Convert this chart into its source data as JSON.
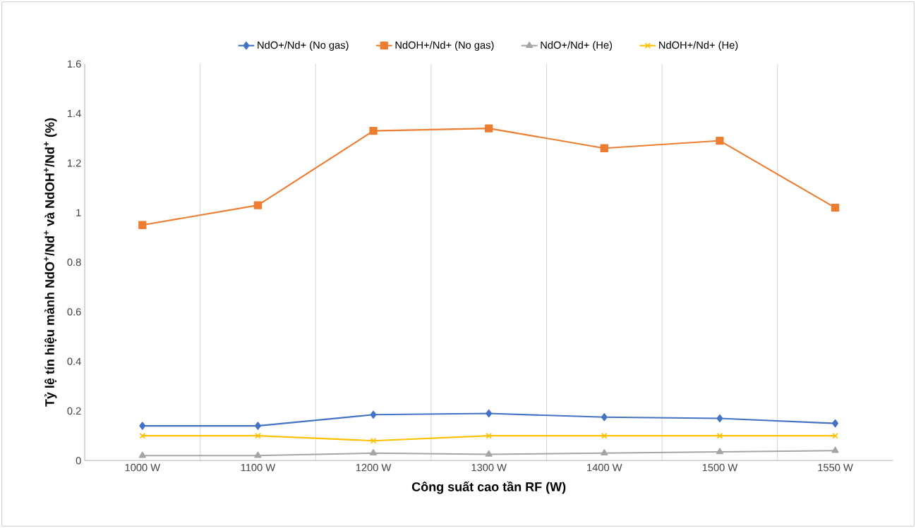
{
  "chart_data": {
    "type": "line",
    "xlabel": "Công suất cao tần RF (W)",
    "ylabel": "Tỷ lệ tín hiệu mảnh NdO$^{+}$/Nd$^{+}$ và NdOH$^{+}$/Nd$^{+}$ (%)",
    "categories": [
      "1000 W",
      "1100 W",
      "1200 W",
      "1300 W",
      "1400 W",
      "1500 W",
      "1550 W"
    ],
    "series": [
      {
        "name": "NdO+/Nd+ (No gas)",
        "color": "#4472c4",
        "marker": "diamond",
        "values": [
          0.14,
          0.14,
          0.185,
          0.19,
          0.175,
          0.17,
          0.15
        ]
      },
      {
        "name": "NdOH+/Nd+ (No gas)",
        "color": "#ed7d31",
        "marker": "square",
        "values": [
          0.95,
          1.03,
          1.33,
          1.34,
          1.26,
          1.29,
          1.02
        ]
      },
      {
        "name": "NdO+/Nd+ (He)",
        "color": "#a5a5a5",
        "marker": "triangle",
        "values": [
          0.02,
          0.02,
          0.03,
          0.025,
          0.03,
          0.035,
          0.04
        ]
      },
      {
        "name": "NdOH+/Nd+ (He)",
        "color": "#ffc000",
        "marker": "cross",
        "values": [
          0.1,
          0.1,
          0.08,
          0.1,
          0.1,
          0.1,
          0.1
        ]
      }
    ],
    "ylim": [
      0,
      1.6
    ],
    "yticks": [
      0,
      0.2,
      0.4,
      0.6,
      0.8,
      1,
      1.2,
      1.4,
      1.6
    ],
    "grid": "x",
    "legend": "top",
    "line_style": "solid"
  }
}
